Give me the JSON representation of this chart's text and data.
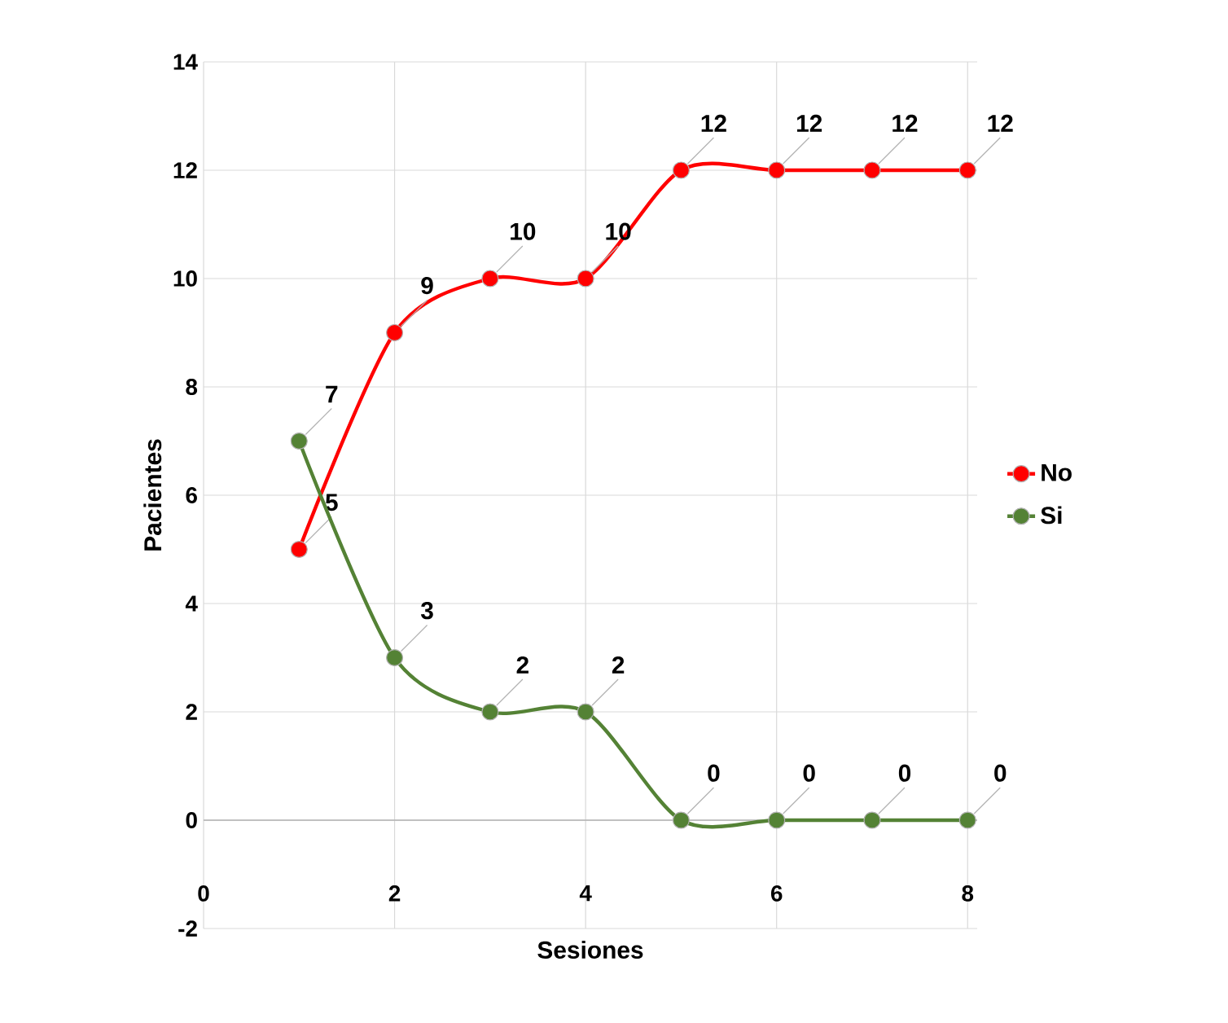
{
  "chart_data": {
    "type": "line",
    "xlabel": "Sesiones",
    "ylabel": "Pacientes",
    "x": [
      1,
      2,
      3,
      4,
      5,
      6,
      7,
      8
    ],
    "series": [
      {
        "name": "No",
        "color": "#ff0000",
        "values": [
          5,
          9,
          10,
          10,
          12,
          12,
          12,
          12
        ]
      },
      {
        "name": "Si",
        "color": "#548235",
        "values": [
          7,
          3,
          2,
          2,
          0,
          0,
          0,
          0
        ]
      }
    ],
    "xlim": [
      0,
      8.1
    ],
    "xticks": [
      0,
      2,
      4,
      6,
      8
    ],
    "ylim": [
      -2,
      14
    ],
    "yticks": [
      -2,
      0,
      2,
      4,
      6,
      8,
      10,
      12,
      14
    ],
    "grid": true,
    "legend": "right",
    "marker": "circle",
    "line_style": "solid",
    "data_labels": true
  }
}
